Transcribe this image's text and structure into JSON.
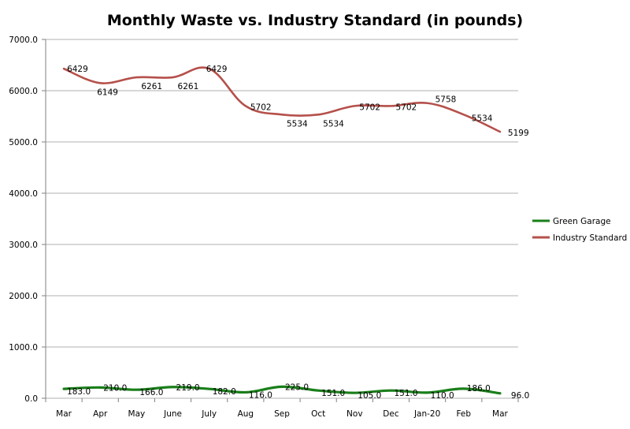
{
  "chart_data": {
    "type": "line",
    "title": "Monthly Waste vs. Industry Standard (in pounds)",
    "xlabel": "",
    "ylabel": "",
    "categories": [
      "Mar",
      "Apr",
      "May",
      "June",
      "July",
      "Aug",
      "Sep",
      "Oct",
      "Nov",
      "Dec",
      "Jan-20",
      "Feb",
      "Mar"
    ],
    "ylim": [
      0,
      7000
    ],
    "y_ticks": [
      "0.0",
      "1000.0",
      "2000.0",
      "3000.0",
      "4000.0",
      "5000.0",
      "6000.0",
      "7000.0"
    ],
    "grid": true,
    "legend_position": "right",
    "series": [
      {
        "name": "Green Garage",
        "color": "#1a7f1a",
        "values": [
          183,
          210,
          166,
          219,
          182,
          116,
          225,
          151,
          105,
          151,
          110,
          186,
          96
        ],
        "labels": [
          "183.0",
          "210.0",
          "166.0",
          "219.0",
          "182.0",
          "116.0",
          "225.0",
          "151.0",
          "105.0",
          "151.0",
          "110.0",
          "186.0",
          "96.0"
        ]
      },
      {
        "name": "Industry Standard",
        "color": "#b5504b",
        "values": [
          6429,
          6149,
          6261,
          6261,
          6429,
          5702,
          5534,
          5534,
          5702,
          5702,
          5758,
          5534,
          5199
        ],
        "labels": [
          "6429",
          "6149",
          "6261",
          "6261",
          "6429",
          "5702",
          "5534",
          "5534",
          "5702",
          "5702",
          "5758",
          "5534",
          "5199"
        ]
      }
    ]
  }
}
